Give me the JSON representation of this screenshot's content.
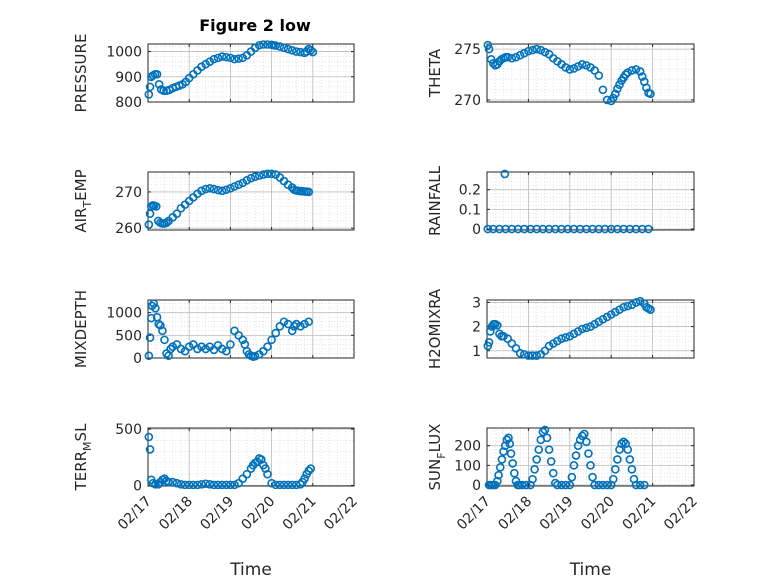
{
  "title": "Figure 2 low",
  "colors": {
    "marker": "#0072BD",
    "axis": "#262626",
    "grid": "#bdbdbd"
  },
  "chart_data": [
    {
      "type": "scatter",
      "ylabel": "PRESSURE",
      "ylabel_sub": null,
      "xlim": [
        0,
        5
      ],
      "ylim": [
        800,
        1030
      ],
      "yticks": [
        800,
        900,
        1000
      ],
      "x": [
        0.02,
        0.05,
        0.08,
        0.12,
        0.17,
        0.22,
        0.27,
        0.32,
        0.38,
        0.45,
        0.52,
        0.6,
        0.68,
        0.76,
        0.84,
        0.92,
        1.0,
        1.1,
        1.2,
        1.3,
        1.4,
        1.5,
        1.6,
        1.7,
        1.8,
        1.9,
        2.0,
        2.1,
        2.2,
        2.3,
        2.4,
        2.5,
        2.6,
        2.7,
        2.8,
        2.9,
        3.0,
        3.05,
        3.1,
        3.2,
        3.3,
        3.4,
        3.5,
        3.6,
        3.7,
        3.8,
        3.85,
        3.9,
        3.95,
        4.0
      ],
      "y": [
        830,
        860,
        900,
        905,
        910,
        910,
        870,
        850,
        845,
        845,
        848,
        855,
        860,
        865,
        870,
        880,
        895,
        910,
        925,
        940,
        950,
        960,
        970,
        975,
        980,
        978,
        975,
        970,
        972,
        975,
        985,
        1000,
        1015,
        1025,
        1028,
        1028,
        1027,
        1025,
        1024,
        1020,
        1015,
        1010,
        1005,
        1000,
        998,
        995,
        1000,
        1010,
        1005,
        998
      ]
    },
    {
      "type": "scatter",
      "ylabel": "THETA",
      "ylabel_sub": null,
      "xlim": [
        0,
        5
      ],
      "ylim": [
        269.8,
        275.5
      ],
      "yticks": [
        270,
        275
      ],
      "x": [
        0.02,
        0.05,
        0.1,
        0.15,
        0.2,
        0.25,
        0.3,
        0.35,
        0.4,
        0.45,
        0.5,
        0.6,
        0.7,
        0.8,
        0.9,
        1.0,
        1.1,
        1.2,
        1.3,
        1.4,
        1.5,
        1.6,
        1.7,
        1.8,
        1.9,
        2.0,
        2.1,
        2.2,
        2.3,
        2.4,
        2.5,
        2.6,
        2.7,
        2.8,
        2.9,
        3.0,
        3.05,
        3.1,
        3.15,
        3.2,
        3.25,
        3.3,
        3.35,
        3.4,
        3.5,
        3.6,
        3.7,
        3.75,
        3.8,
        3.85,
        3.9,
        3.95
      ],
      "y": [
        275.4,
        275.0,
        274.0,
        273.6,
        273.4,
        273.5,
        273.8,
        274.0,
        274.1,
        274.2,
        274.2,
        274.1,
        274.2,
        274.4,
        274.6,
        274.8,
        274.9,
        275.0,
        274.9,
        274.7,
        274.5,
        274.1,
        273.8,
        273.5,
        273.2,
        273.0,
        273.1,
        273.3,
        273.5,
        273.4,
        273.2,
        272.9,
        272.4,
        271.0,
        270.0,
        269.9,
        270.2,
        270.6,
        271.1,
        271.5,
        271.9,
        272.2,
        272.5,
        272.7,
        272.9,
        273.0,
        272.8,
        272.3,
        271.8,
        271.2,
        270.7,
        270.6
      ]
    },
    {
      "type": "scatter",
      "ylabel": "AIR",
      "ylabel_sub": "T",
      "ylabel_suffix": "EMP",
      "xlim": [
        0,
        5
      ],
      "ylim": [
        259.5,
        275.5
      ],
      "yticks": [
        260,
        270
      ],
      "x": [
        0.02,
        0.05,
        0.08,
        0.12,
        0.15,
        0.2,
        0.25,
        0.3,
        0.35,
        0.4,
        0.45,
        0.5,
        0.6,
        0.7,
        0.8,
        0.9,
        1.0,
        1.1,
        1.2,
        1.3,
        1.4,
        1.5,
        1.6,
        1.7,
        1.8,
        1.9,
        2.0,
        2.1,
        2.2,
        2.3,
        2.4,
        2.5,
        2.6,
        2.7,
        2.8,
        2.9,
        3.0,
        3.1,
        3.2,
        3.3,
        3.4,
        3.5,
        3.55,
        3.6,
        3.65,
        3.7,
        3.75,
        3.8,
        3.85,
        3.9
      ],
      "y": [
        261,
        264,
        266,
        266.3,
        266.2,
        266,
        262,
        261.5,
        261.3,
        261.3,
        261.5,
        262,
        263,
        264,
        265.5,
        266.5,
        267.5,
        268.5,
        269.5,
        270.3,
        270.8,
        271,
        270.8,
        270.5,
        270.3,
        270.6,
        271,
        271.5,
        272,
        272.5,
        273.2,
        273.8,
        274.2,
        274.5,
        274.8,
        275,
        275,
        274.8,
        274,
        273,
        272,
        271.2,
        270.6,
        270.4,
        270.3,
        270.2,
        270.2,
        270.1,
        270.1,
        270.0
      ]
    },
    {
      "type": "scatter",
      "ylabel": "RAINFALL",
      "ylabel_sub": null,
      "xlim": [
        0,
        5
      ],
      "ylim": [
        -0.005,
        0.29
      ],
      "yticks": [
        0,
        0.1,
        0.2
      ],
      "ytick_labels": [
        "0",
        "0.1",
        "0.2"
      ],
      "x": [
        0.43,
        0.02,
        0.15,
        0.3,
        0.45,
        0.6,
        0.75,
        0.9,
        1.05,
        1.2,
        1.35,
        1.5,
        1.65,
        1.8,
        1.95,
        2.1,
        2.25,
        2.4,
        2.55,
        2.7,
        2.85,
        3.0,
        3.15,
        3.3,
        3.45,
        3.6,
        3.75,
        3.9
      ],
      "y": [
        0.28,
        0,
        0,
        0,
        0,
        0,
        0,
        0,
        0,
        0,
        0,
        0,
        0,
        0,
        0,
        0,
        0,
        0,
        0,
        0,
        0,
        0,
        0,
        0,
        0,
        0,
        0,
        0
      ]
    },
    {
      "type": "scatter",
      "ylabel": "MIXDEPTH",
      "ylabel_sub": null,
      "xlim": [
        0,
        5
      ],
      "ylim": [
        0,
        1280
      ],
      "yticks": [
        0,
        500,
        1000
      ],
      "x": [
        0.02,
        0.05,
        0.08,
        0.1,
        0.14,
        0.18,
        0.22,
        0.26,
        0.3,
        0.35,
        0.4,
        0.45,
        0.5,
        0.55,
        0.6,
        0.7,
        0.8,
        0.9,
        1.0,
        1.1,
        1.2,
        1.3,
        1.4,
        1.5,
        1.6,
        1.7,
        1.8,
        1.9,
        2.0,
        2.1,
        2.2,
        2.3,
        2.35,
        2.4,
        2.45,
        2.5,
        2.55,
        2.6,
        2.7,
        2.8,
        2.9,
        3.0,
        3.1,
        3.2,
        3.3,
        3.4,
        3.5,
        3.55,
        3.6,
        3.7,
        3.8,
        3.9
      ],
      "y": [
        50,
        450,
        880,
        1150,
        1200,
        1100,
        900,
        750,
        720,
        600,
        400,
        100,
        50,
        200,
        250,
        300,
        200,
        150,
        250,
        300,
        200,
        250,
        200,
        250,
        180,
        280,
        200,
        150,
        300,
        600,
        500,
        400,
        300,
        150,
        80,
        50,
        30,
        40,
        80,
        150,
        250,
        400,
        550,
        700,
        800,
        750,
        600,
        700,
        750,
        700,
        750,
        800
      ]
    },
    {
      "type": "scatter",
      "ylabel": "H2OMIXRA",
      "ylabel_sub": null,
      "xlim": [
        0,
        5
      ],
      "ylim": [
        0.7,
        3.1
      ],
      "yticks": [
        1,
        2,
        3
      ],
      "x": [
        0.02,
        0.05,
        0.08,
        0.12,
        0.16,
        0.2,
        0.25,
        0.3,
        0.35,
        0.4,
        0.5,
        0.6,
        0.7,
        0.8,
        0.9,
        1.0,
        1.1,
        1.2,
        1.3,
        1.4,
        1.5,
        1.6,
        1.7,
        1.8,
        1.9,
        2.0,
        2.1,
        2.2,
        2.3,
        2.4,
        2.5,
        2.6,
        2.7,
        2.8,
        2.9,
        3.0,
        3.1,
        3.2,
        3.3,
        3.4,
        3.5,
        3.6,
        3.7,
        3.8,
        3.85,
        3.9,
        3.95
      ],
      "y": [
        1.2,
        1.35,
        1.8,
        2.0,
        2.1,
        2.1,
        2.05,
        1.7,
        1.6,
        1.6,
        1.5,
        1.3,
        1.1,
        0.9,
        0.85,
        0.8,
        0.8,
        0.8,
        0.85,
        1.0,
        1.2,
        1.3,
        1.4,
        1.5,
        1.55,
        1.6,
        1.7,
        1.8,
        1.9,
        1.95,
        2.0,
        2.1,
        2.2,
        2.3,
        2.4,
        2.5,
        2.6,
        2.7,
        2.8,
        2.85,
        2.9,
        3.0,
        3.05,
        2.95,
        2.8,
        2.75,
        2.7
      ]
    },
    {
      "type": "scatter",
      "ylabel": "TERR",
      "ylabel_sub": "M",
      "ylabel_suffix": "SL",
      "xlim": [
        0,
        5
      ],
      "ylim": [
        -5,
        510
      ],
      "yticks": [
        0,
        500
      ],
      "xtick_labels": [
        "02/17",
        "02/18",
        "02/19",
        "02/20",
        "02/21",
        "02/22"
      ],
      "xlabel": "Time",
      "x": [
        0.02,
        0.05,
        0.08,
        0.12,
        0.18,
        0.25,
        0.3,
        0.35,
        0.4,
        0.45,
        0.5,
        0.6,
        0.7,
        0.8,
        0.9,
        1.0,
        1.1,
        1.2,
        1.3,
        1.4,
        1.5,
        1.6,
        1.7,
        1.8,
        1.9,
        2.0,
        2.1,
        2.2,
        2.3,
        2.4,
        2.5,
        2.55,
        2.6,
        2.65,
        2.7,
        2.75,
        2.8,
        2.85,
        2.9,
        3.0,
        3.1,
        3.2,
        3.3,
        3.4,
        3.5,
        3.6,
        3.7,
        3.75,
        3.8,
        3.85,
        3.9,
        3.95
      ],
      "y": [
        430,
        320,
        50,
        20,
        10,
        10,
        30,
        50,
        60,
        40,
        30,
        30,
        20,
        10,
        5,
        5,
        5,
        5,
        10,
        15,
        10,
        5,
        5,
        5,
        5,
        5,
        5,
        20,
        60,
        100,
        150,
        180,
        200,
        210,
        240,
        230,
        180,
        150,
        100,
        20,
        5,
        5,
        5,
        5,
        5,
        5,
        10,
        30,
        60,
        100,
        130,
        150
      ]
    },
    {
      "type": "scatter",
      "ylabel": "SUN",
      "ylabel_sub": "F",
      "ylabel_suffix": "LUX",
      "xlim": [
        0,
        5
      ],
      "ylim": [
        -5,
        290
      ],
      "yticks": [
        0,
        100,
        200
      ],
      "xtick_labels": [
        "02/17",
        "02/18",
        "02/19",
        "02/20",
        "02/21",
        "02/22"
      ],
      "xlabel": "Time",
      "x": [
        0.05,
        0.1,
        0.15,
        0.2,
        0.25,
        0.28,
        0.32,
        0.36,
        0.4,
        0.44,
        0.48,
        0.52,
        0.55,
        0.58,
        0.62,
        0.66,
        0.7,
        0.74,
        0.78,
        0.85,
        0.95,
        1.05,
        1.1,
        1.15,
        1.2,
        1.25,
        1.3,
        1.35,
        1.4,
        1.45,
        1.5,
        1.55,
        1.6,
        1.65,
        1.7,
        1.8,
        1.9,
        2.0,
        2.05,
        2.1,
        2.15,
        2.2,
        2.25,
        2.3,
        2.35,
        2.4,
        2.45,
        2.5,
        2.55,
        2.6,
        2.7,
        2.8,
        2.9,
        3.0,
        3.05,
        3.1,
        3.15,
        3.2,
        3.25,
        3.3,
        3.35,
        3.4,
        3.45,
        3.5,
        3.55,
        3.6,
        3.7,
        3.8
      ],
      "y": [
        0,
        0,
        0,
        0,
        20,
        50,
        90,
        130,
        170,
        200,
        230,
        240,
        210,
        160,
        110,
        60,
        20,
        0,
        0,
        0,
        0,
        0,
        30,
        80,
        130,
        180,
        230,
        270,
        280,
        240,
        180,
        120,
        60,
        10,
        0,
        0,
        0,
        0,
        40,
        100,
        150,
        200,
        230,
        250,
        260,
        220,
        160,
        100,
        40,
        0,
        0,
        0,
        0,
        0,
        30,
        80,
        130,
        180,
        210,
        220,
        210,
        180,
        130,
        80,
        30,
        0,
        0,
        0
      ]
    }
  ]
}
